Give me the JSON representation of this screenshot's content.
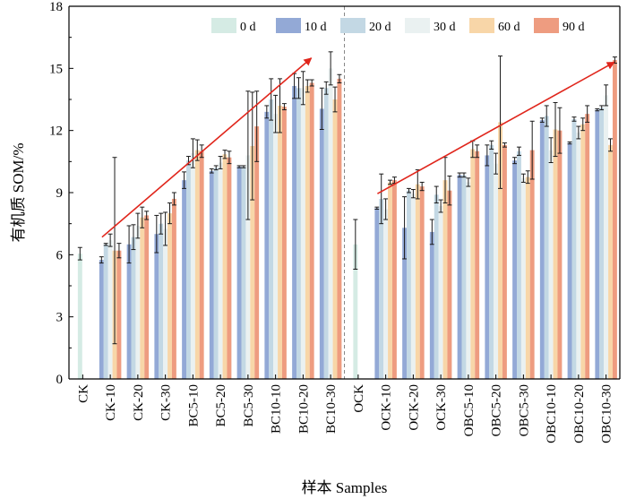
{
  "chart_data": {
    "type": "bar",
    "xlabel": "样本 Samples",
    "ylabel": "有机质 SOM/%",
    "ylim": [
      0,
      18
    ],
    "yticks": [
      0,
      3,
      6,
      9,
      12,
      15,
      18
    ],
    "legend_position": "top-right",
    "legend_columns": 6,
    "divider_after_index": 9,
    "categories": [
      "CK",
      "CK-10",
      "CK-20",
      "CK-30",
      "BC5-10",
      "BC5-20",
      "BC5-30",
      "BC10-10",
      "BC10-20",
      "BC10-30",
      "OCK",
      "OCK-10",
      "OCK-20",
      "OCK-30",
      "OBC5-10",
      "OBC5-20",
      "OBC5-30",
      "OBC10-10",
      "OBC10-20",
      "OBC10-30"
    ],
    "series": [
      {
        "name": "0 d",
        "color": "#d5ebe4",
        "values": [
          6.05,
          null,
          null,
          null,
          null,
          null,
          null,
          null,
          null,
          null,
          6.5,
          null,
          null,
          null,
          null,
          null,
          null,
          null,
          null,
          null
        ],
        "errors": [
          0.3,
          null,
          null,
          null,
          null,
          null,
          null,
          null,
          null,
          null,
          1.2,
          null,
          null,
          null,
          null,
          null,
          null,
          null,
          null,
          null
        ]
      },
      {
        "name": "10 d",
        "color": "#93a9d6",
        "values": [
          null,
          5.75,
          6.5,
          7.0,
          9.6,
          10.05,
          10.25,
          12.9,
          14.15,
          13.05,
          null,
          8.25,
          7.3,
          7.1,
          9.85,
          10.8,
          10.55,
          12.5,
          11.4,
          13.0
        ],
        "errors": [
          null,
          0.15,
          0.9,
          0.9,
          0.4,
          0.1,
          0.05,
          0.3,
          0.6,
          1.0,
          null,
          0.05,
          1.5,
          0.6,
          0.1,
          0.5,
          0.15,
          0.1,
          0.05,
          0.05
        ]
      },
      {
        "name": "20 d",
        "color": "#c3d8e4",
        "values": [
          null,
          6.5,
          6.85,
          7.5,
          10.55,
          10.2,
          10.25,
          13.5,
          14.05,
          14.05,
          null,
          8.7,
          9.1,
          8.9,
          9.85,
          11.3,
          11.0,
          12.7,
          12.55,
          13.1
        ],
        "errors": [
          null,
          0.05,
          0.6,
          0.5,
          0.2,
          0.1,
          0.05,
          1.0,
          0.5,
          0.3,
          null,
          1.2,
          0.1,
          0.4,
          0.1,
          0.2,
          0.2,
          0.5,
          0.1,
          0.1
        ]
      },
      {
        "name": "30 d",
        "color": "#eaf1f1",
        "values": [
          null,
          6.7,
          7.4,
          7.25,
          10.9,
          10.45,
          10.8,
          12.8,
          14.05,
          15.0,
          null,
          8.2,
          8.95,
          8.35,
          9.5,
          10.4,
          9.7,
          11.05,
          11.9,
          13.7
        ],
        "errors": [
          null,
          0.3,
          0.6,
          0.8,
          0.7,
          0.3,
          3.1,
          0.9,
          0.8,
          0.8,
          null,
          0.5,
          0.2,
          0.3,
          0.2,
          0.5,
          0.2,
          0.6,
          0.3,
          0.5
        ]
      },
      {
        "name": "60 d",
        "color": "#f8d6a8",
        "values": [
          null,
          6.2,
          7.8,
          8.0,
          11.05,
          10.85,
          11.25,
          13.2,
          14.15,
          13.5,
          null,
          9.5,
          9.4,
          9.6,
          11.1,
          12.4,
          9.75,
          12.05,
          12.3,
          11.3
        ],
        "errors": [
          null,
          4.5,
          0.5,
          0.5,
          0.5,
          0.2,
          2.6,
          1.3,
          0.3,
          0.6,
          null,
          0.1,
          0.7,
          1.1,
          0.4,
          3.2,
          0.3,
          1.3,
          0.3,
          0.3
        ]
      },
      {
        "name": "90 d",
        "color": "#ee9c80",
        "values": [
          null,
          6.2,
          7.9,
          8.7,
          11.0,
          10.7,
          12.2,
          13.15,
          14.3,
          14.5,
          null,
          9.6,
          9.3,
          9.1,
          11.0,
          11.3,
          11.05,
          12.0,
          12.8,
          15.4
        ],
        "errors": [
          null,
          0.35,
          0.2,
          0.3,
          0.3,
          0.3,
          1.7,
          0.15,
          0.15,
          0.2,
          null,
          0.15,
          0.2,
          0.7,
          0.3,
          0.1,
          1.4,
          1.1,
          0.4,
          0.15
        ]
      }
    ],
    "trend_arrows": [
      {
        "from": {
          "category": "CK-10",
          "value": 6.85
        },
        "to": {
          "category": "BC10-20",
          "value": 15.5
        },
        "color": "#e0261c"
      },
      {
        "from": {
          "category": "OCK-10",
          "value": 8.95
        },
        "to": {
          "category": "OBC10-30",
          "value": 15.3
        },
        "color": "#e0261c"
      }
    ],
    "colors": {
      "axis": "#000000",
      "divider": "#888888",
      "error_bar": "#1a1a1a"
    }
  }
}
